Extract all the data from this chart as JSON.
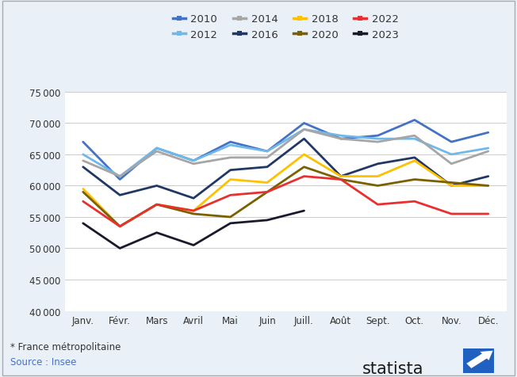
{
  "months": [
    "Janv.",
    "Févr.",
    "Mars",
    "Avril",
    "Mai",
    "Juin",
    "Juill.",
    "Août",
    "Sept.",
    "Oct.",
    "Nov.",
    "Déc."
  ],
  "series": {
    "2010": [
      67000,
      61000,
      66000,
      64000,
      67000,
      65500,
      70000,
      67500,
      68000,
      70500,
      67000,
      68500
    ],
    "2012": [
      65000,
      61500,
      66000,
      64000,
      66500,
      65500,
      69000,
      68000,
      67500,
      67500,
      65000,
      66000
    ],
    "2014": [
      64000,
      61500,
      65500,
      63500,
      64500,
      64500,
      69000,
      67500,
      67000,
      68000,
      63500,
      65500
    ],
    "2016": [
      63000,
      58500,
      60000,
      58000,
      62500,
      63000,
      67500,
      61500,
      63500,
      64500,
      60000,
      61500
    ],
    "2018": [
      59500,
      53500,
      57000,
      56000,
      61000,
      60500,
      65000,
      61500,
      61500,
      64000,
      60000,
      60000
    ],
    "2020": [
      59000,
      53500,
      57000,
      55500,
      55000,
      59000,
      63000,
      61000,
      60000,
      61000,
      60500,
      60000
    ],
    "2022": [
      57500,
      53500,
      57000,
      56000,
      58500,
      59000,
      61500,
      61000,
      57000,
      57500,
      55500,
      55500
    ],
    "2023": [
      54000,
      50000,
      52500,
      50500,
      54000,
      54500,
      56000,
      null,
      null,
      null,
      null,
      null
    ]
  },
  "colors": {
    "2010": "#4472C4",
    "2012": "#70B8E8",
    "2014": "#A6A6A6",
    "2016": "#1F3864",
    "2018": "#FFC000",
    "2020": "#7B6000",
    "2022": "#E83030",
    "2023": "#1A1A2E"
  },
  "ylim": [
    40000,
    75000
  ],
  "yticks": [
    40000,
    45000,
    50000,
    55000,
    60000,
    65000,
    70000,
    75000
  ],
  "background_color": "#EAF0F8",
  "plot_background": "#FFFFFF",
  "grid_color": "#CCCCCC",
  "footer_text1": "* France métropolitaine",
  "footer_text2": "Source : Insee",
  "legend_row1": [
    "2010",
    "2012",
    "2014",
    "2016"
  ],
  "legend_row2": [
    "2018",
    "2020",
    "2022",
    "2023"
  ],
  "legend_order": [
    "2010",
    "2012",
    "2014",
    "2016",
    "2018",
    "2020",
    "2022",
    "2023"
  ]
}
